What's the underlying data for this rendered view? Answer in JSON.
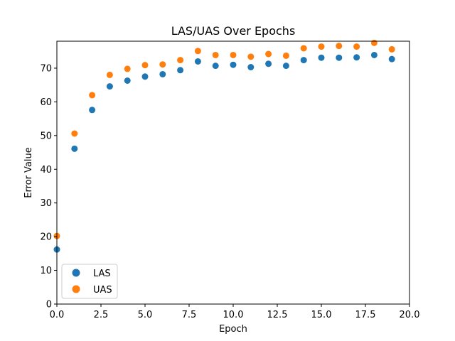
{
  "chart_data": {
    "type": "scatter",
    "title": "LAS/UAS Over Epochs",
    "xlabel": "Epoch",
    "ylabel": "Error Value",
    "xlim": [
      0,
      20
    ],
    "ylim": [
      0,
      78
    ],
    "xticks": [
      "0.0",
      "2.5",
      "5.0",
      "7.5",
      "10.0",
      "12.5",
      "15.0",
      "17.5",
      "20.0"
    ],
    "yticks": [
      "0",
      "10",
      "20",
      "30",
      "40",
      "50",
      "60",
      "70"
    ],
    "legend_position": "lower-left",
    "grid": false,
    "x": [
      0,
      1,
      2,
      3,
      4,
      5,
      6,
      7,
      8,
      9,
      10,
      11,
      12,
      13,
      14,
      15,
      16,
      17,
      18,
      19
    ],
    "series": [
      {
        "name": "LAS",
        "color": "#1f77b4",
        "values": [
          16.2,
          46.1,
          57.6,
          64.6,
          66.3,
          67.5,
          68.2,
          69.4,
          72.0,
          70.7,
          71.0,
          70.3,
          71.3,
          70.7,
          72.4,
          73.1,
          73.1,
          73.2,
          73.9,
          72.7
        ]
      },
      {
        "name": "UAS",
        "color": "#ff7f0e",
        "values": [
          20.2,
          50.6,
          62.0,
          68.0,
          69.8,
          70.9,
          71.1,
          72.4,
          75.1,
          73.9,
          73.9,
          73.4,
          74.2,
          73.7,
          75.9,
          76.4,
          76.6,
          76.4,
          77.5,
          75.6
        ]
      }
    ]
  }
}
